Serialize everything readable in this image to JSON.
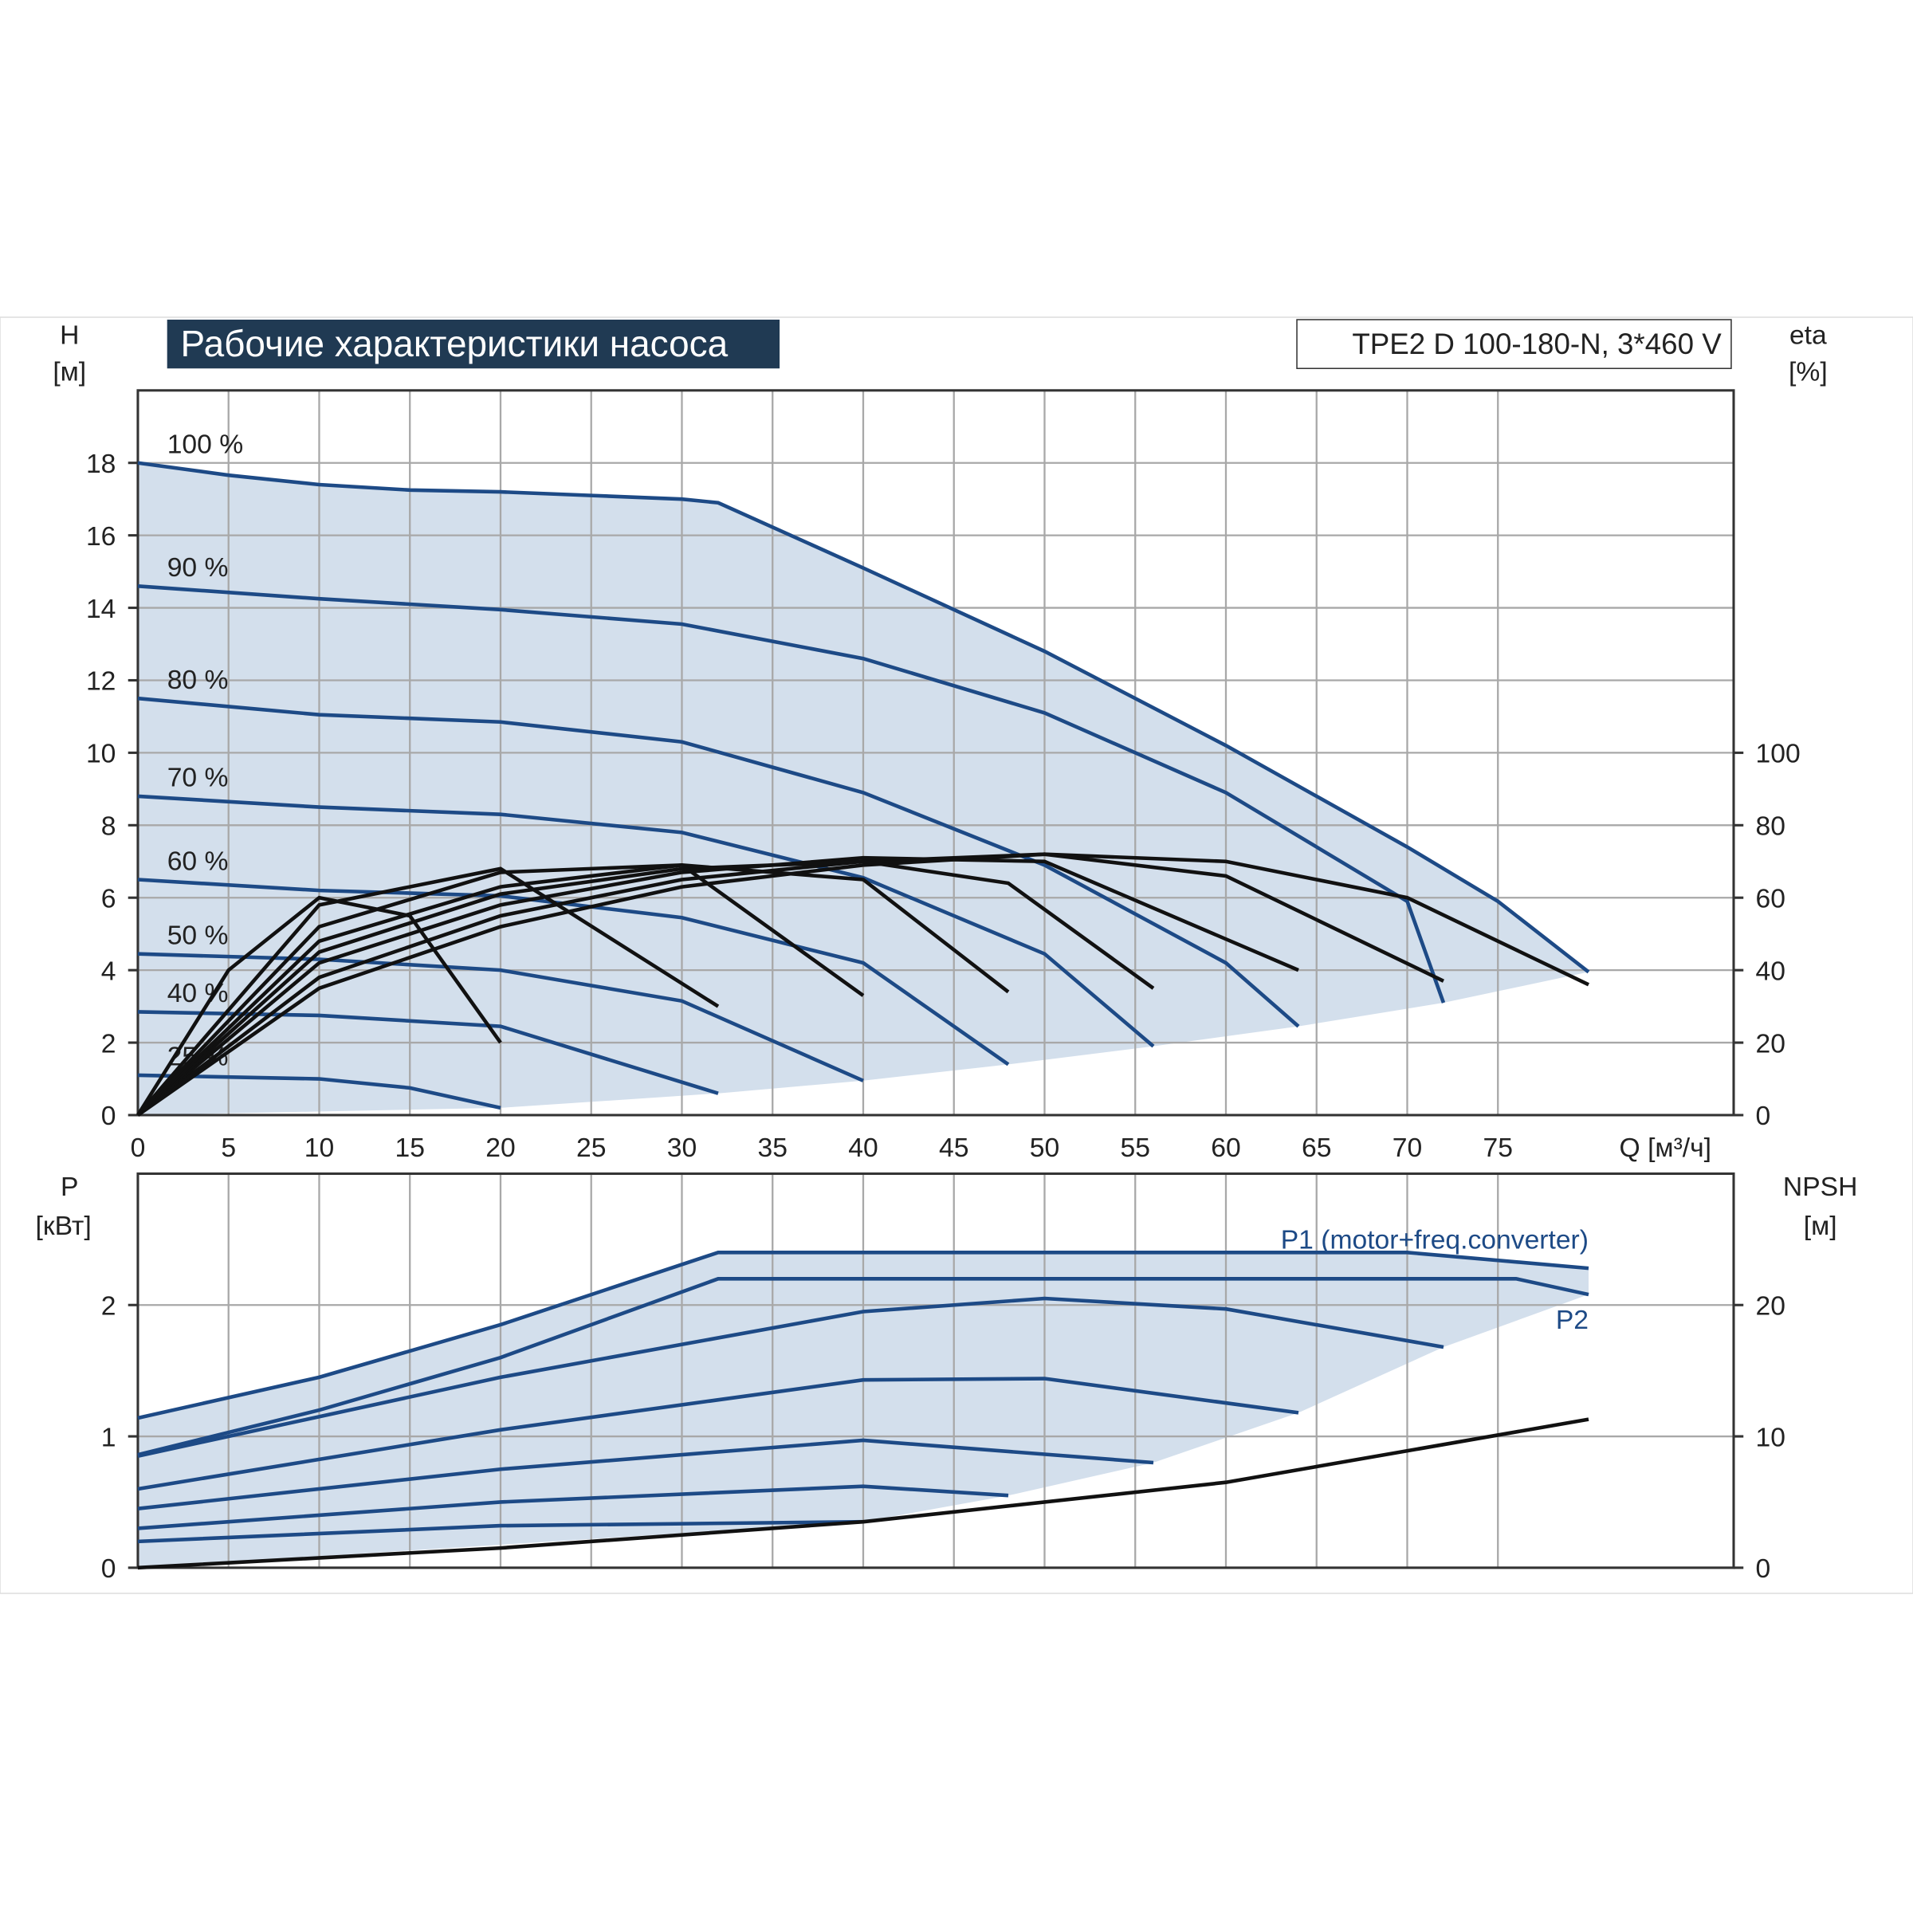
{
  "chart_data": [
    {
      "type": "line",
      "title": "Рабочие характеристики насоса",
      "subtitle": "TPE2 D 100-180-N, 3*460 V",
      "y_label": "H",
      "y_unit": "[м]",
      "y2_label": "eta",
      "y2_unit": "[%]",
      "x_label": "Q [м³/ч]",
      "xlim": [
        0,
        88
      ],
      "xticks": [
        0,
        5,
        10,
        15,
        20,
        25,
        30,
        35,
        40,
        45,
        50,
        55,
        60,
        65,
        70,
        75
      ],
      "ylim": [
        0,
        20
      ],
      "yticks": [
        0,
        2,
        4,
        6,
        8,
        10,
        12,
        14,
        16,
        18
      ],
      "y2lim": [
        0,
        200
      ],
      "y2ticks": [
        0,
        20,
        40,
        60,
        80,
        100
      ],
      "grid": true,
      "area_color": "#d3dfec",
      "series": [
        {
          "name": "100 %",
          "color": "#1d4a86",
          "x": [
            0,
            5,
            10,
            15,
            20,
            25,
            30,
            32,
            40,
            50,
            60,
            70,
            75,
            80
          ],
          "values": [
            18.0,
            17.66,
            17.4,
            17.25,
            17.2,
            17.1,
            17.0,
            16.9,
            15.1,
            12.8,
            10.2,
            7.4,
            5.9,
            3.95
          ]
        },
        {
          "name": "90 %",
          "color": "#1d4a86",
          "x": [
            0,
            10,
            20,
            30,
            40,
            50,
            60,
            70,
            72
          ],
          "values": [
            14.6,
            14.25,
            13.95,
            13.55,
            12.6,
            11.1,
            8.9,
            5.9,
            3.1
          ]
        },
        {
          "name": "80 %",
          "color": "#1d4a86",
          "x": [
            0,
            10,
            20,
            30,
            40,
            50,
            60,
            64
          ],
          "values": [
            11.5,
            11.05,
            10.85,
            10.3,
            8.9,
            6.9,
            4.2,
            2.45
          ]
        },
        {
          "name": "70 %",
          "color": "#1d4a86",
          "x": [
            0,
            10,
            20,
            30,
            40,
            50,
            56
          ],
          "values": [
            8.8,
            8.5,
            8.3,
            7.8,
            6.55,
            4.45,
            1.9
          ]
        },
        {
          "name": "60 %",
          "color": "#1d4a86",
          "x": [
            0,
            10,
            20,
            30,
            40,
            48
          ],
          "values": [
            6.5,
            6.2,
            6.05,
            5.45,
            4.2,
            1.4
          ]
        },
        {
          "name": "50 %",
          "color": "#1d4a86",
          "x": [
            0,
            10,
            20,
            30,
            40
          ],
          "values": [
            4.45,
            4.3,
            4.0,
            3.15,
            0.95
          ]
        },
        {
          "name": "40 %",
          "color": "#1d4a86",
          "x": [
            0,
            10,
            20,
            32
          ],
          "values": [
            2.85,
            2.75,
            2.45,
            0.6
          ]
        },
        {
          "name": "25 %",
          "color": "#1d4a86",
          "x": [
            0,
            10,
            15,
            20
          ],
          "values": [
            1.1,
            1.0,
            0.75,
            0.2
          ]
        },
        {
          "color": "#111111",
          "axis": "y2",
          "x": [
            0,
            10,
            20,
            30,
            40,
            50,
            60,
            70,
            80
          ],
          "values": [
            0,
            35,
            52,
            63,
            69,
            72,
            70,
            60,
            36
          ]
        },
        {
          "color": "#111111",
          "axis": "y2",
          "x": [
            0,
            10,
            20,
            30,
            40,
            50,
            60,
            72
          ],
          "values": [
            0,
            38,
            55,
            65,
            70,
            72,
            66,
            37
          ]
        },
        {
          "color": "#111111",
          "axis": "y2",
          "x": [
            0,
            10,
            20,
            30,
            40,
            50,
            64
          ],
          "values": [
            0,
            42,
            58,
            67,
            71,
            70,
            40
          ]
        },
        {
          "color": "#111111",
          "axis": "y2",
          "x": [
            0,
            10,
            20,
            30,
            40,
            48,
            56
          ],
          "values": [
            0,
            45,
            61,
            68,
            70,
            64,
            35
          ]
        },
        {
          "color": "#111111",
          "axis": "y2",
          "x": [
            0,
            10,
            20,
            30,
            40,
            48
          ],
          "values": [
            0,
            48,
            63,
            69,
            65,
            34
          ]
        },
        {
          "color": "#111111",
          "axis": "y2",
          "x": [
            0,
            10,
            20,
            30,
            40
          ],
          "values": [
            0,
            52,
            67,
            69,
            33
          ]
        },
        {
          "color": "#111111",
          "axis": "y2",
          "x": [
            0,
            10,
            20,
            32
          ],
          "values": [
            0,
            58,
            68,
            30
          ]
        },
        {
          "color": "#111111",
          "axis": "y2",
          "x": [
            0,
            5,
            10,
            15,
            20
          ],
          "values": [
            0,
            40,
            60,
            55,
            20
          ]
        }
      ]
    },
    {
      "type": "line",
      "y_label": "P",
      "y_unit": "[кВт]",
      "y2_label": "NPSH",
      "y2_unit": "[м]",
      "xlim": [
        0,
        88
      ],
      "ylim": [
        0,
        3
      ],
      "yticks": [
        0,
        1,
        2
      ],
      "y2lim": [
        0,
        30
      ],
      "y2ticks": [
        0,
        10,
        20
      ],
      "grid": true,
      "area_color": "#d3dfec",
      "series": [
        {
          "name": "P1 (motor+freq.converter)",
          "color": "#1d4a86",
          "x": [
            0,
            10,
            20,
            32,
            40,
            50,
            60,
            70,
            80
          ],
          "values": [
            1.14,
            1.45,
            1.85,
            2.4,
            2.4,
            2.4,
            2.4,
            2.4,
            2.28
          ]
        },
        {
          "name": "P2",
          "color": "#1d4a86",
          "x": [
            0,
            10,
            20,
            32,
            40,
            50,
            60,
            70,
            76,
            80
          ],
          "values": [
            0.86,
            1.2,
            1.6,
            2.2,
            2.2,
            2.2,
            2.2,
            2.2,
            2.2,
            2.08
          ]
        },
        {
          "color": "#1d4a86",
          "x": [
            0,
            20,
            40,
            50,
            60,
            72
          ],
          "values": [
            0.85,
            1.45,
            1.95,
            2.05,
            1.97,
            1.68
          ]
        },
        {
          "color": "#1d4a86",
          "x": [
            0,
            20,
            40,
            50,
            64
          ],
          "values": [
            0.6,
            1.05,
            1.43,
            1.44,
            1.18
          ]
        },
        {
          "color": "#1d4a86",
          "x": [
            0,
            20,
            40,
            56
          ],
          "values": [
            0.45,
            0.75,
            0.97,
            0.8
          ]
        },
        {
          "color": "#1d4a86",
          "x": [
            0,
            20,
            40,
            48
          ],
          "values": [
            0.3,
            0.5,
            0.62,
            0.55
          ]
        },
        {
          "color": "#1d4a86",
          "x": [
            0,
            20,
            40
          ],
          "values": [
            0.2,
            0.32,
            0.35
          ]
        },
        {
          "color": "#111111",
          "axis": "y2",
          "x": [
            0,
            20,
            40,
            60,
            80
          ],
          "values": [
            0,
            1.5,
            3.5,
            6.5,
            11.3
          ]
        }
      ]
    }
  ]
}
